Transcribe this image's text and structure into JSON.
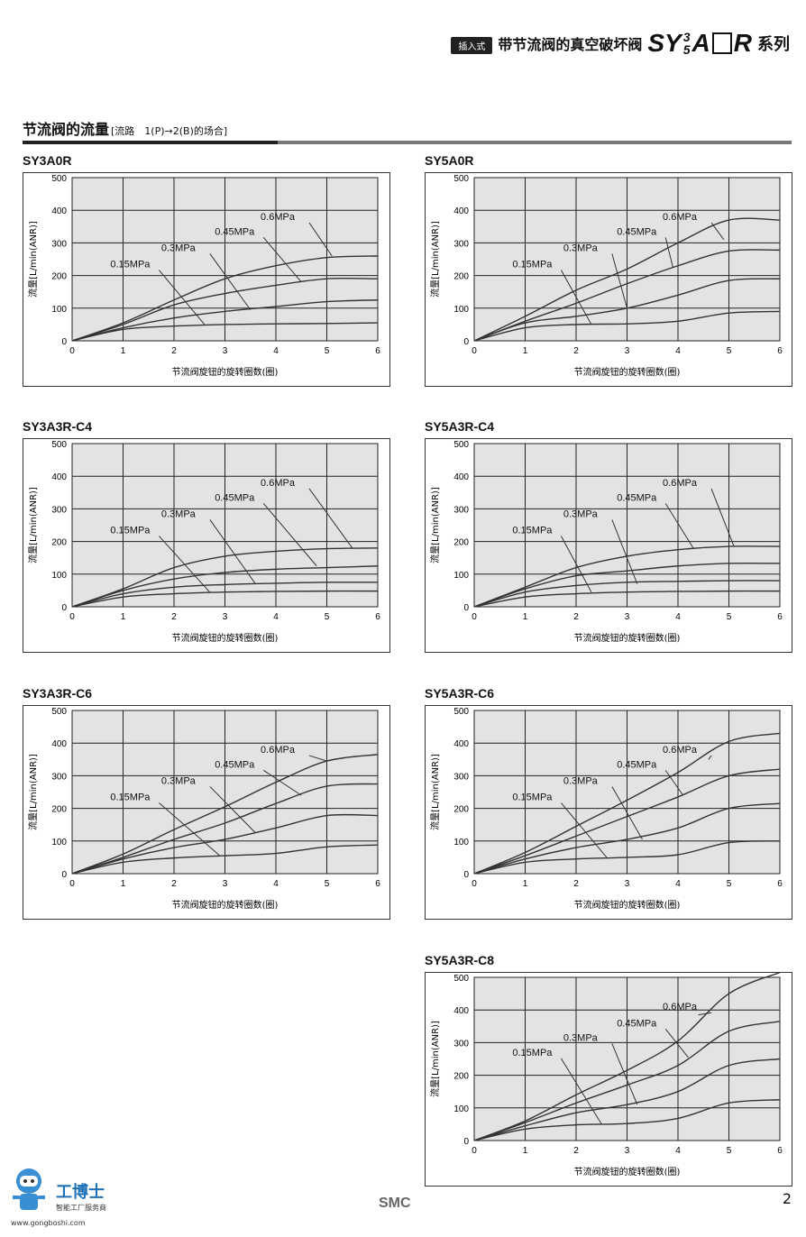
{
  "header": {
    "tag": "插入式",
    "title": "带节流阀的真空破坏阀",
    "series_prefix": "SY",
    "series_top": "3",
    "series_bottom": "5",
    "series_a": "A",
    "series_r": "R",
    "series_suffix": "系列"
  },
  "section": {
    "title": "节流阀的流量",
    "subtitle": "[流路　1(P)→2(B)的场合]"
  },
  "footer": {
    "page_number": "2",
    "brand": "SMC",
    "logo_name": "工博士",
    "logo_slogan": "智能工厂服务商",
    "logo_url": "www.gongboshi.com"
  },
  "chart_data": [
    {
      "id": "SY3A0R",
      "type": "line",
      "title": "SY3A0R",
      "xlabel": "节流阀旋钮的旋转圈数(圈)",
      "ylabel": "流量[L/min(ANR)]",
      "xlim": [
        0,
        6
      ],
      "ylim": [
        0,
        500
      ],
      "xticks": [
        "0",
        "1",
        "2",
        "3",
        "4",
        "5",
        "6"
      ],
      "yticks": [
        "0",
        "100",
        "200",
        "300",
        "400",
        "500"
      ],
      "grid": true,
      "series": [
        {
          "name": "0.6MPa",
          "x": [
            0,
            1,
            2,
            3,
            4,
            5,
            6
          ],
          "y": [
            0,
            55,
            125,
            190,
            230,
            255,
            260
          ],
          "label_at": [
            3.7,
            370
          ],
          "leader_to": [
            5.1,
            260
          ]
        },
        {
          "name": "0.45MPa",
          "x": [
            0,
            1,
            2,
            3,
            4,
            5,
            6
          ],
          "y": [
            0,
            50,
            110,
            145,
            170,
            190,
            190
          ],
          "label_at": [
            2.8,
            325
          ],
          "leader_to": [
            4.5,
            180
          ]
        },
        {
          "name": "0.3MPa",
          "x": [
            0,
            1,
            2,
            3,
            4,
            5,
            6
          ],
          "y": [
            0,
            40,
            70,
            90,
            105,
            120,
            125
          ],
          "label_at": [
            1.75,
            275
          ],
          "leader_to": [
            3.5,
            95
          ]
        },
        {
          "name": "0.15MPa",
          "x": [
            0,
            1,
            2,
            3,
            4,
            5,
            6
          ],
          "y": [
            0,
            35,
            45,
            50,
            52,
            53,
            55
          ],
          "label_at": [
            0.75,
            225
          ],
          "leader_to": [
            2.6,
            50
          ]
        }
      ]
    },
    {
      "id": "SY5A0R",
      "type": "line",
      "title": "SY5A0R",
      "xlabel": "节流阀旋钮的旋转圈数(圈)",
      "ylabel": "流量[L/min(ANR)]",
      "xlim": [
        0,
        6
      ],
      "ylim": [
        0,
        500
      ],
      "xticks": [
        "0",
        "1",
        "2",
        "3",
        "4",
        "5",
        "6"
      ],
      "yticks": [
        "0",
        "100",
        "200",
        "300",
        "400",
        "500"
      ],
      "grid": true,
      "series": [
        {
          "name": "0.6MPa",
          "x": [
            0,
            1,
            2,
            3,
            4,
            5,
            6
          ],
          "y": [
            0,
            75,
            155,
            220,
            300,
            370,
            370
          ],
          "label_at": [
            3.7,
            370
          ],
          "leader_to": [
            4.9,
            310
          ]
        },
        {
          "name": "0.45MPa",
          "x": [
            0,
            1,
            2,
            3,
            4,
            5,
            6
          ],
          "y": [
            0,
            60,
            115,
            175,
            230,
            275,
            278
          ],
          "label_at": [
            2.8,
            325
          ],
          "leader_to": [
            3.9,
            225
          ]
        },
        {
          "name": "0.3MPa",
          "x": [
            0,
            1,
            2,
            3,
            4,
            5,
            6
          ],
          "y": [
            0,
            55,
            75,
            100,
            140,
            185,
            190
          ],
          "label_at": [
            1.75,
            275
          ],
          "leader_to": [
            3.0,
            100
          ]
        },
        {
          "name": "0.15MPa",
          "x": [
            0,
            1,
            2,
            3,
            4,
            5,
            6
          ],
          "y": [
            0,
            40,
            50,
            52,
            60,
            85,
            90
          ],
          "label_at": [
            0.75,
            225
          ],
          "leader_to": [
            2.3,
            50
          ]
        }
      ]
    },
    {
      "id": "SY3A3R-C4",
      "type": "line",
      "title": "SY3A3R-C4",
      "xlabel": "节流阀旋钮的旋转圈数(圈)",
      "ylabel": "流量[L/min(ANR)]",
      "xlim": [
        0,
        6
      ],
      "ylim": [
        0,
        500
      ],
      "xticks": [
        "0",
        "1",
        "2",
        "3",
        "4",
        "5",
        "6"
      ],
      "yticks": [
        "0",
        "100",
        "200",
        "300",
        "400",
        "500"
      ],
      "grid": true,
      "series": [
        {
          "name": "0.6MPa",
          "x": [
            0,
            1,
            2,
            3,
            4,
            5,
            6
          ],
          "y": [
            0,
            55,
            120,
            155,
            170,
            178,
            180
          ],
          "label_at": [
            3.7,
            370
          ],
          "leader_to": [
            5.5,
            180
          ]
        },
        {
          "name": "0.45MPa",
          "x": [
            0,
            1,
            2,
            3,
            4,
            5,
            6
          ],
          "y": [
            0,
            50,
            85,
            105,
            115,
            120,
            125
          ],
          "label_at": [
            2.8,
            325
          ],
          "leader_to": [
            4.8,
            125
          ]
        },
        {
          "name": "0.3MPa",
          "x": [
            0,
            1,
            2,
            3,
            4,
            5,
            6
          ],
          "y": [
            0,
            40,
            60,
            68,
            72,
            75,
            75
          ],
          "label_at": [
            1.75,
            275
          ],
          "leader_to": [
            3.6,
            70
          ]
        },
        {
          "name": "0.15MPa",
          "x": [
            0,
            1,
            2,
            3,
            4,
            5,
            6
          ],
          "y": [
            0,
            30,
            40,
            45,
            47,
            48,
            48
          ],
          "label_at": [
            0.75,
            225
          ],
          "leader_to": [
            2.7,
            45
          ]
        }
      ]
    },
    {
      "id": "SY5A3R-C4",
      "type": "line",
      "title": "SY5A3R-C4",
      "xlabel": "节流阀旋钮的旋转圈数(圈)",
      "ylabel": "流量[L/min(ANR)]",
      "xlim": [
        0,
        6
      ],
      "ylim": [
        0,
        500
      ],
      "xticks": [
        "0",
        "1",
        "2",
        "3",
        "4",
        "5",
        "6"
      ],
      "yticks": [
        "0",
        "100",
        "200",
        "300",
        "400",
        "500"
      ],
      "grid": true,
      "series": [
        {
          "name": "0.6MPa",
          "x": [
            0,
            1,
            2,
            3,
            4,
            5,
            6
          ],
          "y": [
            0,
            60,
            120,
            155,
            175,
            185,
            185
          ],
          "label_at": [
            3.7,
            370
          ],
          "leader_to": [
            5.1,
            185
          ]
        },
        {
          "name": "0.45MPa",
          "x": [
            0,
            1,
            2,
            3,
            4,
            5,
            6
          ],
          "y": [
            0,
            55,
            95,
            110,
            125,
            133,
            133
          ],
          "label_at": [
            2.8,
            325
          ],
          "leader_to": [
            4.3,
            180
          ]
        },
        {
          "name": "0.3MPa",
          "x": [
            0,
            1,
            2,
            3,
            4,
            5,
            6
          ],
          "y": [
            0,
            45,
            65,
            75,
            78,
            80,
            80
          ],
          "label_at": [
            1.75,
            275
          ],
          "leader_to": [
            3.2,
            70
          ]
        },
        {
          "name": "0.15MPa",
          "x": [
            0,
            1,
            2,
            3,
            4,
            5,
            6
          ],
          "y": [
            0,
            30,
            40,
            45,
            47,
            48,
            48
          ],
          "label_at": [
            0.75,
            225
          ],
          "leader_to": [
            2.3,
            45
          ]
        }
      ]
    },
    {
      "id": "SY3A3R-C6",
      "type": "line",
      "title": "SY3A3R-C6",
      "xlabel": "节流阀旋钮的旋转圈数(圈)",
      "ylabel": "流量[L/min(ANR)]",
      "xlim": [
        0,
        6
      ],
      "ylim": [
        0,
        500
      ],
      "xticks": [
        "0",
        "1",
        "2",
        "3",
        "4",
        "5",
        "6"
      ],
      "yticks": [
        "0",
        "100",
        "200",
        "300",
        "400",
        "500"
      ],
      "grid": true,
      "series": [
        {
          "name": "0.6MPa",
          "x": [
            0,
            1,
            2,
            3,
            4,
            5,
            6
          ],
          "y": [
            0,
            60,
            135,
            205,
            280,
            345,
            365
          ],
          "label_at": [
            3.7,
            370
          ],
          "leader_to": [
            5.0,
            345
          ]
        },
        {
          "name": "0.45MPa",
          "x": [
            0,
            1,
            2,
            3,
            4,
            5,
            6
          ],
          "y": [
            0,
            50,
            105,
            155,
            215,
            268,
            275
          ],
          "label_at": [
            2.8,
            325
          ],
          "leader_to": [
            4.5,
            240
          ]
        },
        {
          "name": "0.3MPa",
          "x": [
            0,
            1,
            2,
            3,
            4,
            5,
            6
          ],
          "y": [
            0,
            45,
            80,
            105,
            140,
            178,
            178
          ],
          "label_at": [
            1.75,
            275
          ],
          "leader_to": [
            3.6,
            125
          ]
        },
        {
          "name": "0.15MPa",
          "x": [
            0,
            1,
            2,
            3,
            4,
            5,
            6
          ],
          "y": [
            0,
            35,
            48,
            55,
            62,
            82,
            88
          ],
          "label_at": [
            0.75,
            225
          ],
          "leader_to": [
            2.9,
            55
          ]
        }
      ]
    },
    {
      "id": "SY5A3R-C6",
      "type": "line",
      "title": "SY5A3R-C6",
      "xlabel": "节流阀旋钮的旋转圈数(圈)",
      "ylabel": "流量[L/min(ANR)]",
      "xlim": [
        0,
        6
      ],
      "ylim": [
        0,
        500
      ],
      "xticks": [
        "0",
        "1",
        "2",
        "3",
        "4",
        "5",
        "6"
      ],
      "yticks": [
        "0",
        "100",
        "200",
        "300",
        "400",
        "500"
      ],
      "grid": true,
      "series": [
        {
          "name": "0.6MPa",
          "x": [
            0,
            1,
            2,
            3,
            4,
            5,
            6
          ],
          "y": [
            0,
            65,
            145,
            225,
            310,
            405,
            430
          ],
          "label_at": [
            3.7,
            370
          ],
          "leader_to": [
            4.6,
            350
          ]
        },
        {
          "name": "0.45MPa",
          "x": [
            0,
            1,
            2,
            3,
            4,
            5,
            6
          ],
          "y": [
            0,
            55,
            115,
            175,
            235,
            300,
            320
          ],
          "label_at": [
            2.8,
            325
          ],
          "leader_to": [
            4.1,
            240
          ]
        },
        {
          "name": "0.3MPa",
          "x": [
            0,
            1,
            2,
            3,
            4,
            5,
            6
          ],
          "y": [
            0,
            45,
            80,
            105,
            140,
            200,
            215
          ],
          "label_at": [
            1.75,
            275
          ],
          "leader_to": [
            3.3,
            105
          ]
        },
        {
          "name": "0.15MPa",
          "x": [
            0,
            1,
            2,
            3,
            4,
            5,
            6
          ],
          "y": [
            0,
            35,
            45,
            50,
            58,
            95,
            100
          ],
          "label_at": [
            0.75,
            225
          ],
          "leader_to": [
            2.6,
            50
          ]
        }
      ]
    },
    {
      "id": "SY5A3R-C8",
      "type": "line",
      "title": "SY5A3R-C8",
      "xlabel": "节流阀旋钮的旋转圈数(圈)",
      "ylabel": "流量[L/min(ANR)]",
      "xlim": [
        0,
        6
      ],
      "ylim": [
        0,
        500
      ],
      "xticks": [
        "0",
        "1",
        "2",
        "3",
        "4",
        "5",
        "6"
      ],
      "yticks": [
        "0",
        "100",
        "200",
        "300",
        "400",
        "500"
      ],
      "grid": true,
      "series": [
        {
          "name": "0.6MPa",
          "x": [
            0,
            1,
            2,
            3,
            4,
            5,
            6
          ],
          "y": [
            0,
            60,
            140,
            215,
            305,
            450,
            515
          ],
          "label_at": [
            3.7,
            400
          ],
          "leader_to": [
            4.4,
            385
          ]
        },
        {
          "name": "0.45MPa",
          "x": [
            0,
            1,
            2,
            3,
            4,
            5,
            6
          ],
          "y": [
            0,
            55,
            115,
            170,
            230,
            335,
            365
          ],
          "label_at": [
            2.8,
            350
          ],
          "leader_to": [
            4.2,
            255
          ]
        },
        {
          "name": "0.3MPa",
          "x": [
            0,
            1,
            2,
            3,
            4,
            5,
            6
          ],
          "y": [
            0,
            45,
            85,
            110,
            150,
            230,
            250
          ],
          "label_at": [
            1.75,
            305
          ],
          "leader_to": [
            3.2,
            110
          ]
        },
        {
          "name": "0.15MPa",
          "x": [
            0,
            1,
            2,
            3,
            4,
            5,
            6
          ],
          "y": [
            0,
            35,
            48,
            52,
            68,
            115,
            125
          ],
          "label_at": [
            0.75,
            260
          ],
          "leader_to": [
            2.5,
            50
          ]
        }
      ]
    }
  ]
}
